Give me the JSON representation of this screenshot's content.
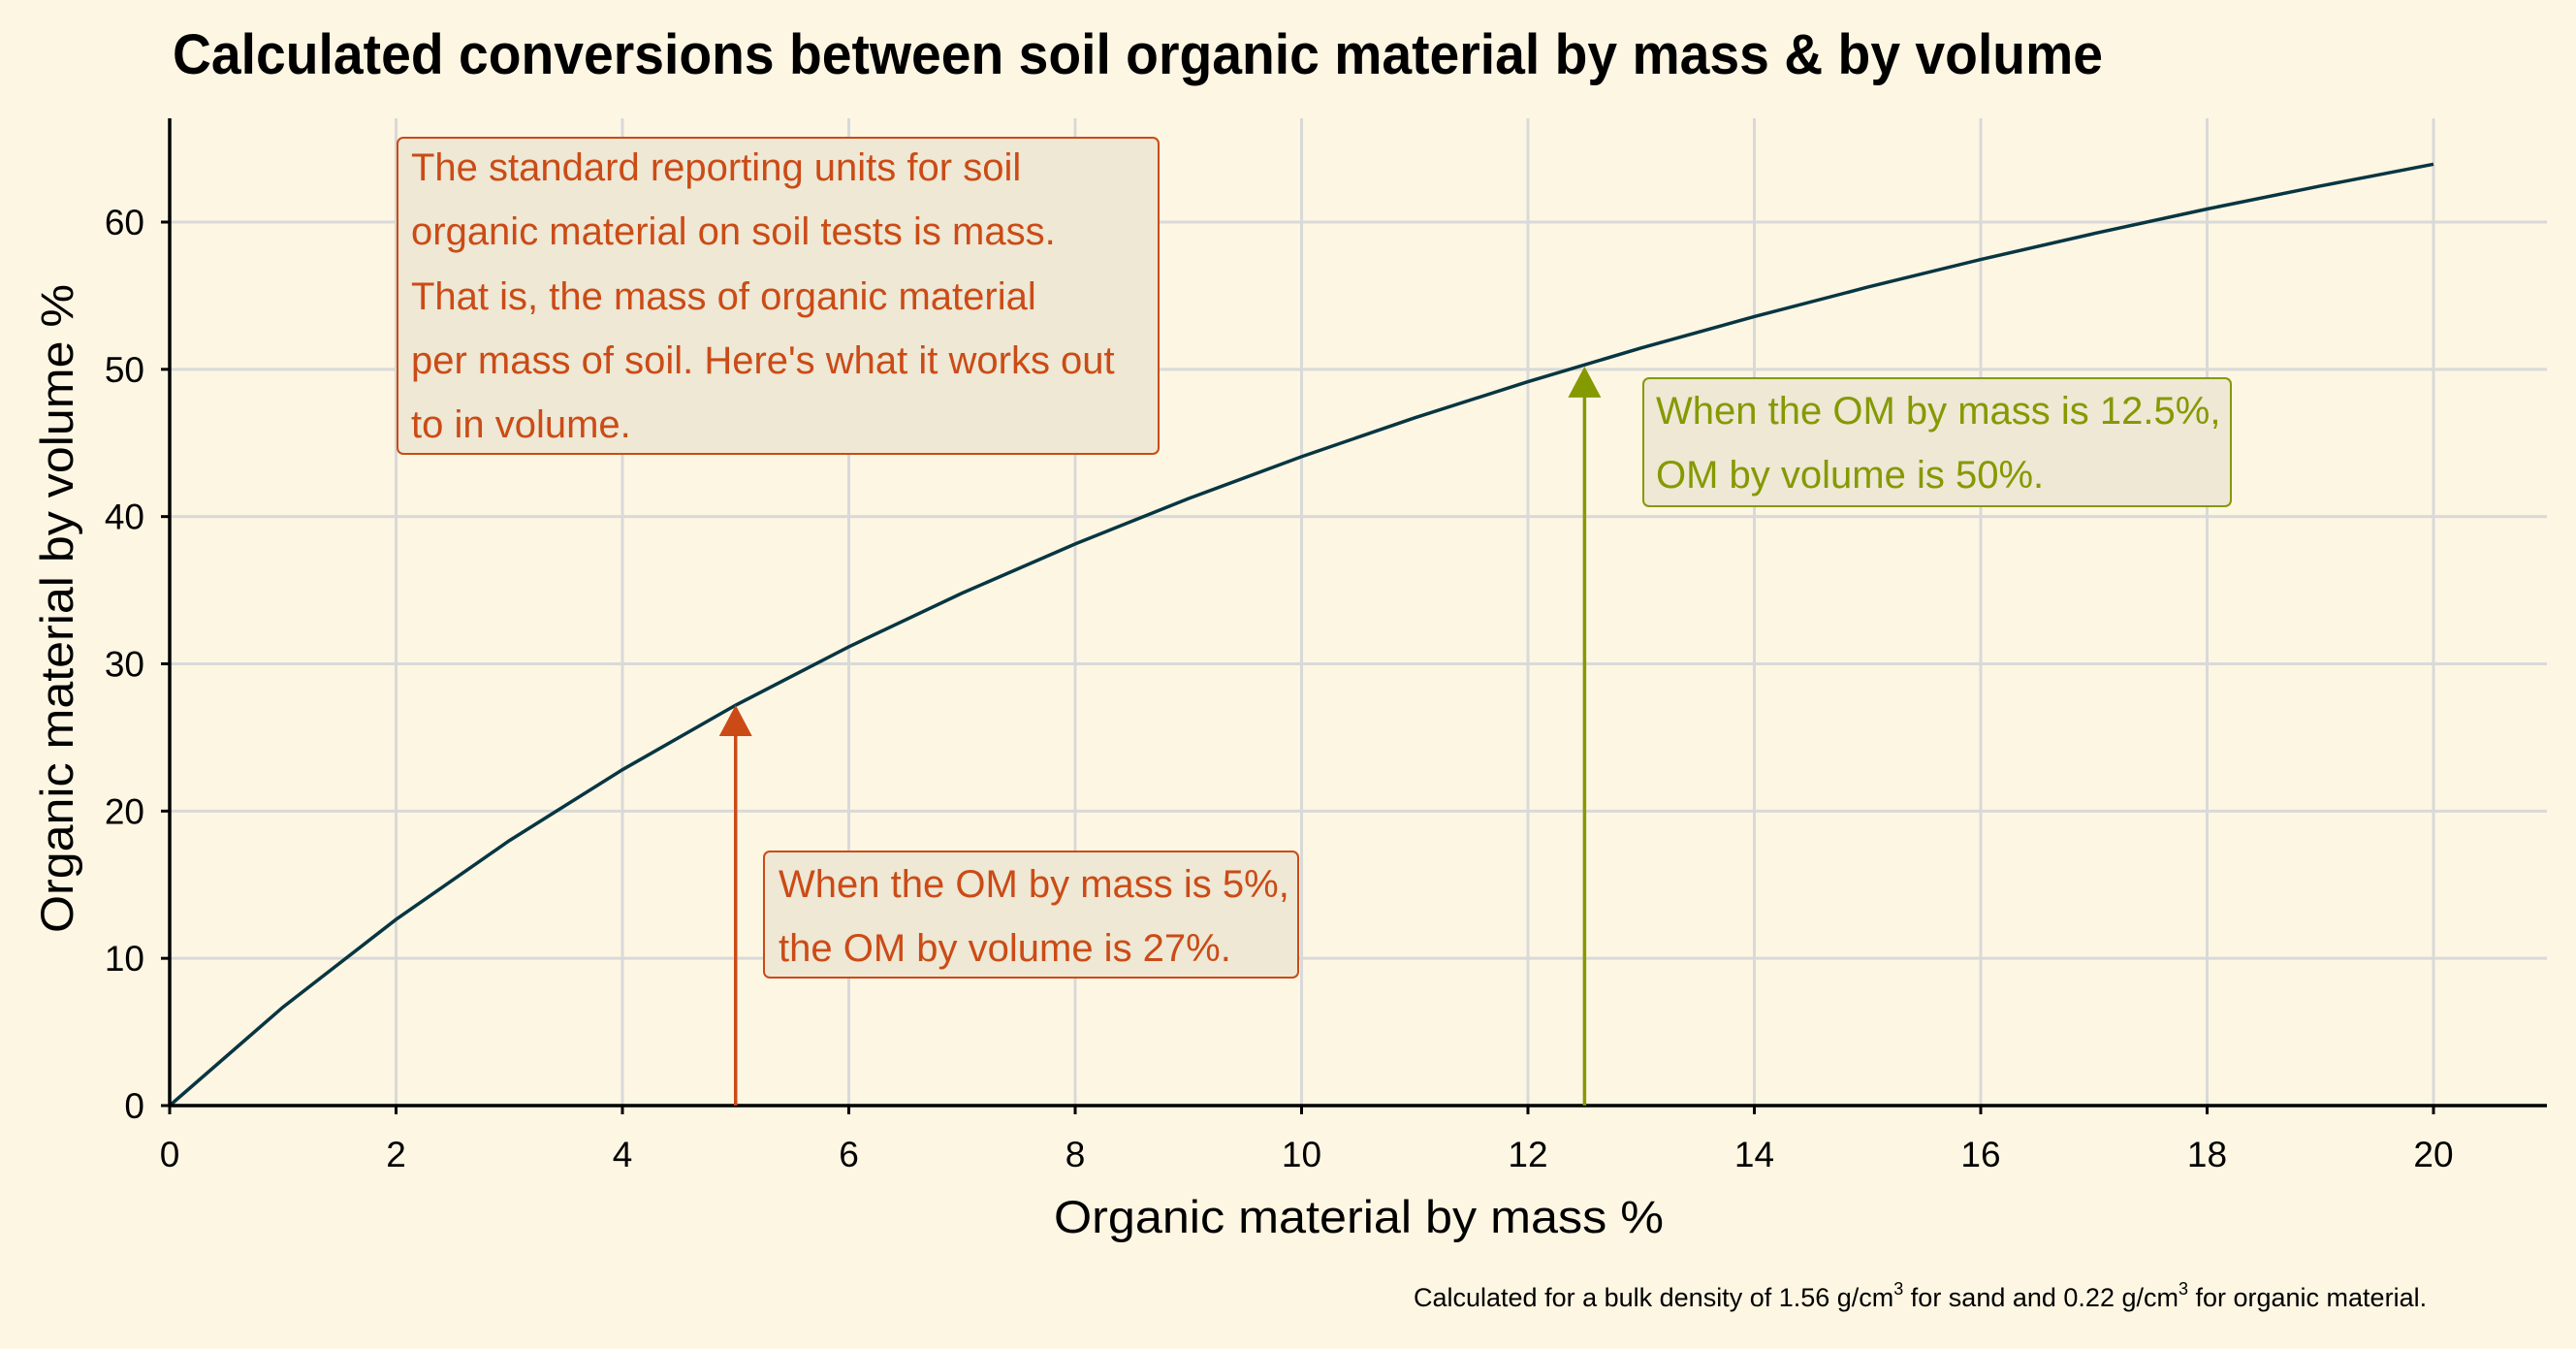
{
  "chart_data": {
    "type": "line",
    "title": "Calculated conversions between soil organic material by mass & by volume",
    "xlabel": "Organic material by mass %",
    "ylabel": "Organic material by volume %",
    "caption": {
      "prefix": "Calculated for a bulk density of 1.56 g/cm",
      "mid": " for sand and 0.22 g/cm",
      "suffix": " for organic material.",
      "sup": "3"
    },
    "xlim": [
      0,
      21
    ],
    "ylim": [
      0,
      67
    ],
    "xticks": [
      0,
      2,
      4,
      6,
      8,
      10,
      12,
      14,
      16,
      18,
      20
    ],
    "yticks": [
      0,
      10,
      20,
      30,
      40,
      50,
      60
    ],
    "grid": true,
    "x": [
      0,
      1,
      2,
      3,
      4,
      5,
      6,
      7,
      8,
      9,
      10,
      11,
      12,
      13,
      14,
      15,
      16,
      17,
      18,
      19,
      20
    ],
    "y": [
      0,
      6.68,
      12.64,
      17.99,
      22.81,
      27.19,
      31.16,
      34.8,
      38.14,
      41.22,
      44.07,
      46.71,
      49.16,
      51.45,
      53.58,
      55.58,
      57.46,
      59.22,
      60.89,
      62.45,
      63.93
    ],
    "colors": {
      "background": "#fdf6e3",
      "line": "#073642",
      "grid": "#d9d9d9",
      "orange": "#cb4b16",
      "green": "#859900",
      "box_fill": "#eee8d5"
    },
    "annotations": {
      "intro": [
        "The standard reporting units for soil",
        "organic material on soil tests is mass.",
        "That is, the mass of organic material",
        "per mass of soil. Here's what it works out",
        "to in volume."
      ],
      "arrow_5": {
        "x": 5,
        "y": 27,
        "lines": [
          "When the OM by mass is 5%,",
          "the OM by volume is 27%."
        ]
      },
      "arrow_12_5": {
        "x": 12.5,
        "y": 50,
        "lines": [
          "When the OM by mass is 12.5%,",
          "OM by volume is 50%."
        ]
      }
    }
  }
}
